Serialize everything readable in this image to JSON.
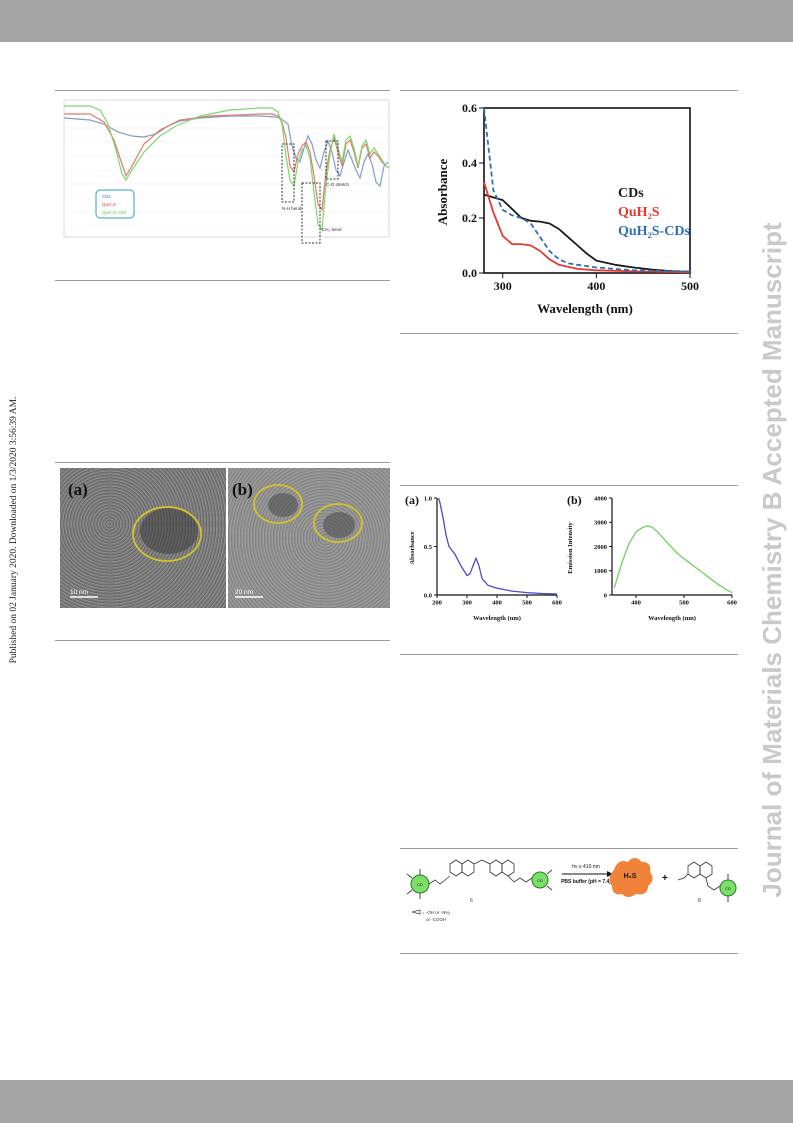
{
  "header_bar": {
    "color": "#a5a5a5"
  },
  "footer_bar": {
    "color": "#a5a5a5"
  },
  "side_note": "Published on 02 January 2020. Downloaded on 1/3/2020 3:56:39 AM.",
  "watermark": "Journal of Materials Chemistry B Accepted Manuscript",
  "colors": {
    "black": "#1a1a1a",
    "red": "#e53a32",
    "blue": "#2c6fb7",
    "green": "#6fd15c",
    "purple": "#4c4cc8",
    "yellow": "#d8c227",
    "orange": "#f0823a"
  },
  "ftir": {
    "legend": [
      "CDs",
      "QuH₂S",
      "QuH₂S-CDs"
    ],
    "annotations": {
      "nh": "N-H bend",
      "co": "C-O stretch",
      "ch": "CH₂ bend"
    }
  },
  "tem": {
    "panel_a": "(a)",
    "panel_b": "(b)",
    "scale_a": "10 nm",
    "scale_b": "20 nm"
  },
  "scheme": {
    "arrow_top": "hν ≥ 410 nm",
    "arrow_bottom": "PBS buffer (pH = 7.4)",
    "product_bubble": "H₂S",
    "plus": "+",
    "cd_label": "CD",
    "legend_line1": "= -OH or -NH₂",
    "legend_line2": "or -COOH",
    "compound_left": "6",
    "compound_right": "8"
  },
  "chart_data": [
    {
      "type": "line",
      "xlabel": "Wavelength (nm)",
      "ylabel": "Absorbance",
      "xlim": [
        280,
        500
      ],
      "ylim": [
        0,
        0.6
      ],
      "xticks": [
        "300",
        "400",
        "500"
      ],
      "yticks": [
        "0.0",
        "0.2",
        "0.4",
        "0.6"
      ],
      "legend_position": "center-right",
      "series": [
        {
          "name": "CDs",
          "color": "#1a1a1a",
          "dash": false,
          "x": [
            280,
            300,
            320,
            330,
            340,
            350,
            360,
            370,
            380,
            390,
            400,
            420,
            440,
            460,
            480,
            500
          ],
          "y": [
            0.285,
            0.265,
            0.2,
            0.19,
            0.187,
            0.18,
            0.16,
            0.13,
            0.1,
            0.07,
            0.045,
            0.03,
            0.02,
            0.012,
            0.007,
            0.005
          ]
        },
        {
          "name": "QuH₂S",
          "color": "#e53a32",
          "dash": false,
          "x": [
            280,
            290,
            300,
            310,
            320,
            330,
            340,
            350,
            360,
            380,
            400,
            450,
            500
          ],
          "y": [
            0.33,
            0.22,
            0.135,
            0.105,
            0.105,
            0.1,
            0.08,
            0.05,
            0.03,
            0.015,
            0.01,
            0.005,
            0.003
          ]
        },
        {
          "name": "QuH₂S-CDs",
          "color": "#2c6fb7",
          "dash": true,
          "x": [
            280,
            285,
            290,
            300,
            310,
            320,
            330,
            340,
            350,
            360,
            370,
            380,
            400,
            440,
            500
          ],
          "y": [
            0.6,
            0.45,
            0.3,
            0.23,
            0.21,
            0.2,
            0.18,
            0.13,
            0.08,
            0.05,
            0.035,
            0.03,
            0.02,
            0.01,
            0.005
          ]
        }
      ]
    },
    {
      "type": "line",
      "panel": "(a)",
      "xlabel": "Wavelength (nm)",
      "ylabel": "Absorbance",
      "xlim": [
        200,
        600
      ],
      "ylim": [
        0,
        1.0
      ],
      "xticks": [
        "200",
        "300",
        "400",
        "500",
        "600"
      ],
      "yticks": [
        "0.0",
        "0.5",
        "1.0"
      ],
      "series": [
        {
          "color": "#4c4cc8",
          "x": [
            205,
            210,
            220,
            230,
            240,
            250,
            260,
            280,
            300,
            310,
            320,
            330,
            340,
            350,
            370,
            400,
            450,
            500,
            550,
            600
          ],
          "y": [
            1.0,
            0.95,
            0.8,
            0.62,
            0.5,
            0.46,
            0.42,
            0.3,
            0.2,
            0.22,
            0.3,
            0.38,
            0.3,
            0.17,
            0.1,
            0.07,
            0.04,
            0.025,
            0.015,
            0.01
          ]
        }
      ]
    },
    {
      "type": "line",
      "panel": "(b)",
      "xlabel": "Wavelength (nm)",
      "ylabel": "Emission Intensity",
      "xlim": [
        350,
        600
      ],
      "ylim": [
        0,
        4000
      ],
      "xticks": [
        "400",
        "500",
        "600"
      ],
      "yticks": [
        "0",
        "1000",
        "2000",
        "3000",
        "4000"
      ],
      "series": [
        {
          "color": "#6fd15c",
          "x": [
            355,
            370,
            385,
            400,
            415,
            425,
            435,
            450,
            470,
            490,
            510,
            530,
            550,
            570,
            590,
            600
          ],
          "y": [
            300,
            1300,
            2100,
            2600,
            2800,
            2850,
            2780,
            2500,
            2050,
            1650,
            1350,
            1050,
            750,
            450,
            200,
            100
          ]
        }
      ]
    }
  ]
}
